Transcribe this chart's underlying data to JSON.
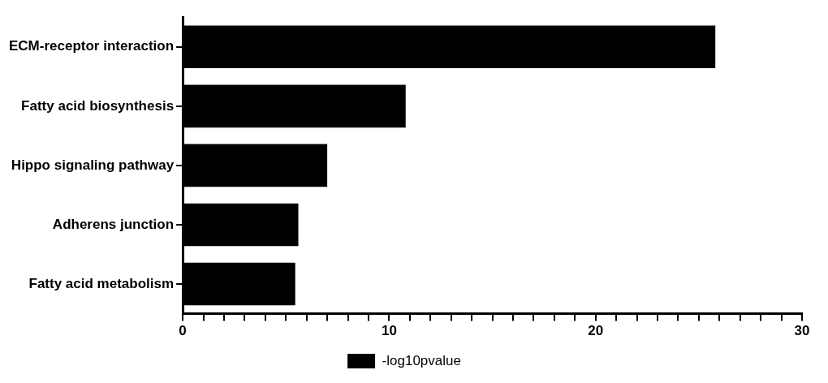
{
  "chart_data": {
    "type": "bar",
    "orientation": "horizontal",
    "categories": [
      "ECM-receptor interaction",
      "Fatty acid biosynthesis",
      "Hippo signaling pathway",
      "Adherens junction",
      "Fatty acid metabolism"
    ],
    "series": [
      {
        "name": "-log10pvalue",
        "color": "#000000",
        "values": [
          25.8,
          10.8,
          7.0,
          5.6,
          5.45
        ]
      }
    ],
    "xlim": [
      0,
      30
    ],
    "xticks": [
      0,
      {
        "value": 1,
        "label": null
      },
      {
        "value": 2,
        "label": null
      },
      {
        "value": 3,
        "label": null
      },
      {
        "value": 4,
        "label": null
      },
      {
        "value": 5,
        "label": null
      },
      {
        "value": 6,
        "label": null
      },
      {
        "value": 7,
        "label": null
      },
      {
        "value": 8,
        "label": null
      },
      {
        "value": 9,
        "label": null
      },
      10,
      {
        "value": 11,
        "label": null
      },
      {
        "value": 12,
        "label": null
      },
      {
        "value": 13,
        "label": null
      },
      {
        "value": 14,
        "label": null
      },
      {
        "value": 15,
        "label": null
      },
      {
        "value": 16,
        "label": null
      },
      {
        "value": 17,
        "label": null
      },
      {
        "value": 18,
        "label": null
      },
      {
        "value": 19,
        "label": null
      },
      20,
      {
        "value": 21,
        "label": null
      },
      {
        "value": 22,
        "label": null
      },
      {
        "value": 23,
        "label": null
      },
      {
        "value": 24,
        "label": null
      },
      {
        "value": 25,
        "label": null
      },
      {
        "value": 26,
        "label": null
      },
      {
        "value": 27,
        "label": null
      },
      {
        "value": 28,
        "label": null
      },
      {
        "value": 29,
        "label": null
      },
      30
    ],
    "grid": false,
    "legend": "bottom"
  }
}
